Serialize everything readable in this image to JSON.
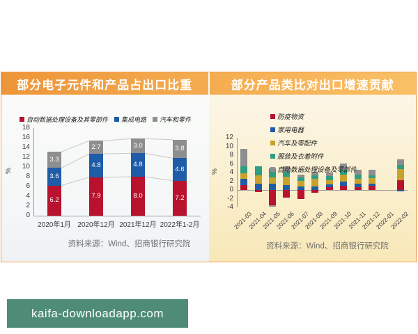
{
  "page": {
    "watermark_text": "kaifa-downloadapp.com"
  },
  "colors": {
    "header_orange_start": "#EE9539",
    "header_orange_end": "#F9C066",
    "card_border": "#EDA14C",
    "watermark_green": "#4E8C77",
    "series_red": "#B8122F",
    "series_blue": "#1E5CA8",
    "series_gold": "#C9A22B",
    "series_green": "#2E9E82",
    "series_gray": "#8E8E90",
    "connector_gray": "#C8C8C4"
  },
  "chart_data": [
    {
      "type": "bar",
      "stacked": true,
      "title": "部分电子元件和产品占出口比重",
      "categories": [
        "2020年1月",
        "2020年12月",
        "2021年12月",
        "2022年1-2月"
      ],
      "series": [
        {
          "name": "自动数据处理设备及其零部件",
          "color": "#B8122F",
          "values": [
            6.2,
            7.9,
            8.0,
            7.2
          ]
        },
        {
          "name": "集成电路",
          "color": "#1E5CA8",
          "values": [
            3.6,
            4.8,
            4.8,
            4.6
          ]
        },
        {
          "name": "汽车和零件",
          "color": "#8E8E90",
          "values": [
            3.3,
            2.7,
            3.0,
            3.8
          ]
        }
      ],
      "xlabel": "",
      "ylabel": "%",
      "ylim": [
        0,
        18
      ],
      "ytick_step": 2,
      "grid": false,
      "value_labels": true,
      "legend_position": "top",
      "source": "资料来源：Wind、招商银行研究院"
    },
    {
      "type": "bar",
      "stacked": true,
      "title": "部分产品类比对出口增速贡献",
      "categories": [
        "2021-03",
        "2021-04",
        "2021-05",
        "2021-06",
        "2021-07",
        "2021-08",
        "2021-09",
        "2021-10",
        "2021-11",
        "2021-12",
        "2022-01",
        "2022-02"
      ],
      "series": [
        {
          "name": "防疫物资",
          "color": "#B8122F",
          "values": [
            1.2,
            -0.4,
            -3.5,
            -1.7,
            -2.0,
            -0.7,
            0.6,
            0.9,
            0.6,
            0.9,
            0,
            2.3
          ]
        },
        {
          "name": "家用电器",
          "color": "#1E5CA8",
          "values": [
            1.4,
            1.5,
            1.4,
            1.2,
            0.8,
            0.8,
            0.7,
            1.0,
            0.8,
            0.6,
            0,
            -0.3
          ]
        },
        {
          "name": "汽车及零配件",
          "color": "#C9A22B",
          "values": [
            1.3,
            1.8,
            1.5,
            1.9,
            1.3,
            1.7,
            1.0,
            1.7,
            1.2,
            1.2,
            0,
            2.5
          ]
        },
        {
          "name": "服装及衣着附件",
          "color": "#2E9E82",
          "values": [
            1.6,
            2.1,
            2.1,
            1.1,
            0.8,
            0.8,
            0.9,
            1.1,
            0.9,
            0.7,
            0,
            0.9
          ]
        },
        {
          "name": "自动数据处理设备及零部件",
          "color": "#8E8E90",
          "values": [
            3.9,
            0,
            -0.4,
            1.3,
            0.6,
            0.9,
            0.8,
            1.4,
            1.2,
            1.2,
            0,
            1.4
          ]
        }
      ],
      "xlabel": "",
      "ylabel": "%",
      "ylim": [
        -4,
        12
      ],
      "ytick_step": 2,
      "grid": false,
      "value_labels": false,
      "legend_position": "upper-left",
      "source": "资料来源：Wind、招商银行研究院"
    }
  ]
}
